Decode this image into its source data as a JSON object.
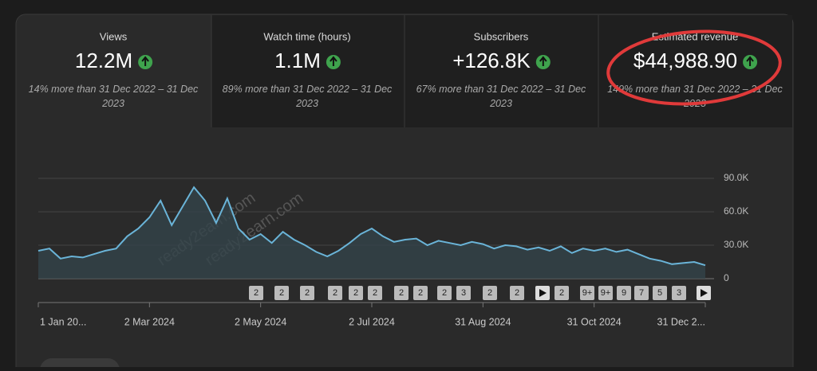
{
  "cards": [
    {
      "title": "Views",
      "value": "12.2M",
      "note": "14% more than 31 Dec 2022 – 31 Dec 2023"
    },
    {
      "title": "Watch time (hours)",
      "value": "1.1M",
      "note": "89% more than 31 Dec 2022 – 31 Dec 2023"
    },
    {
      "title": "Subscribers",
      "value": "+126.8K",
      "note": "67% more than 31 Dec 2022 – 31 Dec 2023"
    },
    {
      "title": "Estimated revenue",
      "value": "$44,988.90",
      "note": "149% more than 31 Dec 2022 – 31 Dec 2023"
    }
  ],
  "watermark": "ready2earn.com",
  "badges": [
    "2",
    "2",
    "2",
    "2",
    "2",
    "2",
    "2",
    "2",
    "2",
    "3",
    "2",
    "2",
    "2",
    "9+",
    "9+",
    "9",
    "7",
    "5",
    "3"
  ],
  "chart_data": {
    "type": "area",
    "color": "#6ab4d8",
    "grid": true,
    "categories": [
      "1 Jan 20...",
      null,
      null,
      null,
      null,
      null,
      null,
      null,
      null,
      null,
      "2 Mar 2024",
      null,
      null,
      null,
      null,
      null,
      null,
      null,
      null,
      null,
      "2 May 2024",
      null,
      null,
      null,
      null,
      null,
      null,
      null,
      null,
      null,
      "2 Jul 2024",
      null,
      null,
      null,
      null,
      null,
      null,
      null,
      null,
      null,
      "31 Aug 2024",
      null,
      null,
      null,
      null,
      null,
      null,
      null,
      null,
      null,
      "31 Oct 2024",
      null,
      null,
      null,
      null,
      null,
      null,
      null,
      null,
      null,
      "31 Dec 2..."
    ],
    "values": [
      25000,
      27000,
      18000,
      20000,
      19000,
      22000,
      25000,
      27000,
      38000,
      45000,
      55000,
      70000,
      48000,
      65000,
      82000,
      70000,
      50000,
      72000,
      45000,
      35000,
      40000,
      32000,
      42000,
      35000,
      30000,
      24000,
      20000,
      25000,
      32000,
      40000,
      45000,
      38000,
      33000,
      35000,
      36000,
      30000,
      34000,
      32000,
      30000,
      33000,
      31000,
      27000,
      30000,
      29000,
      26000,
      28000,
      25000,
      29000,
      23000,
      27000,
      25000,
      27000,
      24000,
      26000,
      22000,
      18000,
      16000,
      13000,
      14000,
      15000,
      12000
    ],
    "ylim": [
      0,
      100000
    ],
    "yticks": [
      0,
      {
        "value": 30000,
        "label": "30.0K"
      },
      {
        "value": 60000,
        "label": "60.0K"
      },
      {
        "value": 90000,
        "label": "90.0K"
      }
    ]
  }
}
